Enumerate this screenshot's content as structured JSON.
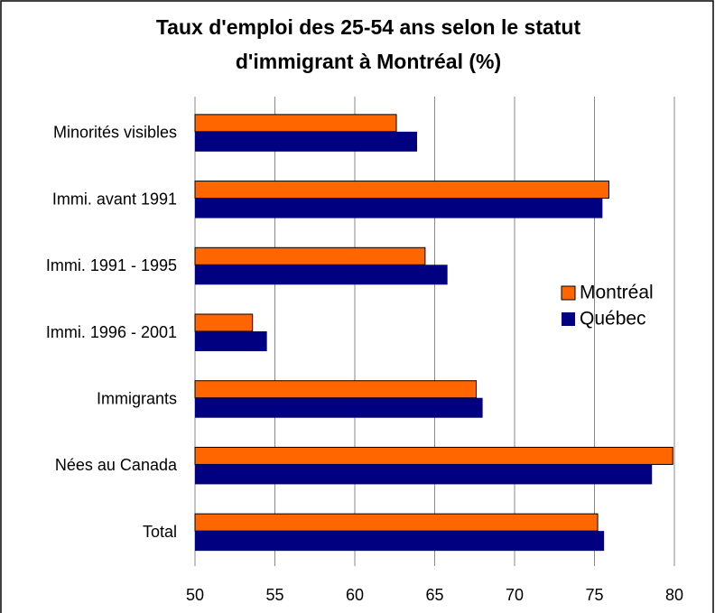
{
  "chart_data": {
    "type": "bar",
    "orientation": "horizontal",
    "title": [
      "Taux d'emploi des 25-54 ans  selon le statut",
      "d'immigrant à Montréal  (%)"
    ],
    "categories": [
      "Minorités visibles",
      "Immi. avant 1991",
      "Immi. 1991 - 1995",
      "Immi. 1996 - 2001",
      "Immigrants",
      "Nées au Canada",
      "Total"
    ],
    "series": [
      {
        "name": "Montréal",
        "color": "#ff6600",
        "values": [
          62.6,
          75.9,
          64.4,
          53.6,
          67.6,
          79.9,
          75.2
        ]
      },
      {
        "name": "Québec",
        "color": "#000080",
        "values": [
          63.9,
          75.5,
          65.8,
          54.5,
          68.0,
          78.6,
          75.6
        ]
      }
    ],
    "xlim": [
      50,
      80
    ],
    "xticks": [
      50,
      55,
      60,
      65,
      70,
      75,
      80
    ],
    "grid": true,
    "legend": "right"
  }
}
